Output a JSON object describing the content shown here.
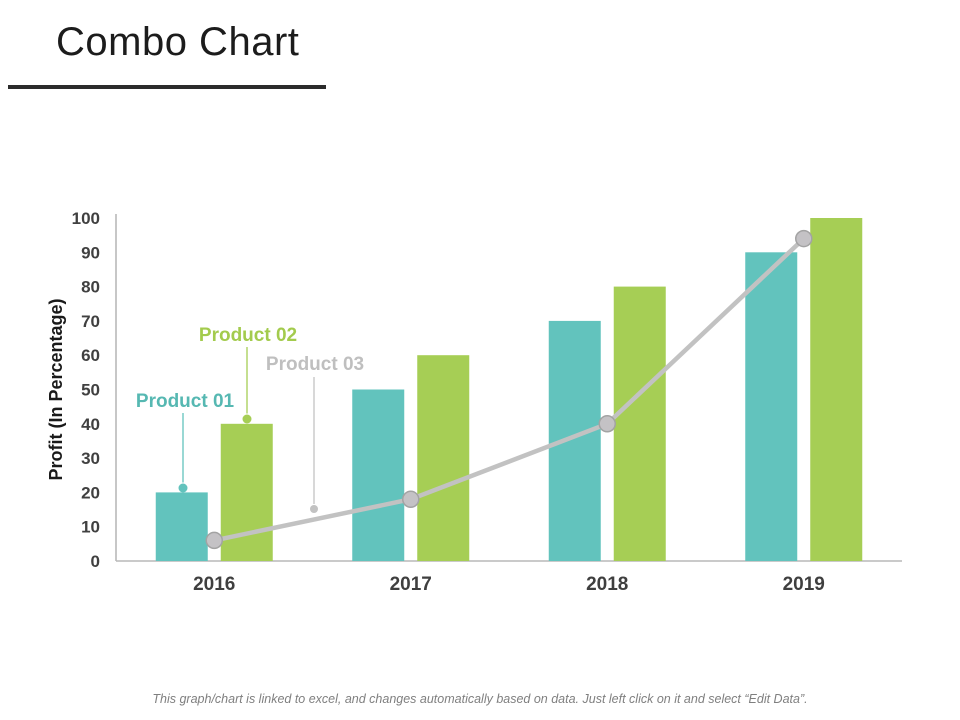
{
  "page": {
    "title": "Combo Chart",
    "footer_note": "This graph/chart is linked to excel, and changes automatically based on data. Just left click on it and select “Edit Data”."
  },
  "chart_data": {
    "type": "combo-bar-line",
    "categories": [
      "2016",
      "2017",
      "2018",
      "2019"
    ],
    "series": [
      {
        "name": "Product 01",
        "type": "bar",
        "color": "#62C3BD",
        "label_color": "#56B8B2",
        "values": [
          20,
          50,
          70,
          90
        ]
      },
      {
        "name": "Product 02",
        "type": "bar",
        "color": "#A6CE55",
        "label_color": "#A3CB4D",
        "values": [
          40,
          60,
          80,
          100
        ]
      },
      {
        "name": "Product 03",
        "type": "line",
        "color": "#C2C2C2",
        "label_color": "#BFBFBF",
        "marker_fill": "#C4C2C5",
        "marker_stroke": "#A3A3A3",
        "values": [
          6,
          18,
          40,
          94
        ]
      }
    ],
    "ylabel": "Profit (In Percentage)",
    "ylim": [
      0,
      100
    ],
    "yticks": [
      0,
      10,
      20,
      30,
      40,
      50,
      60,
      70,
      80,
      90,
      100
    ],
    "grid": false,
    "legend_position": "inline-callouts",
    "axis_color": "#B9B9B9",
    "tick_label_color": "#404040"
  }
}
